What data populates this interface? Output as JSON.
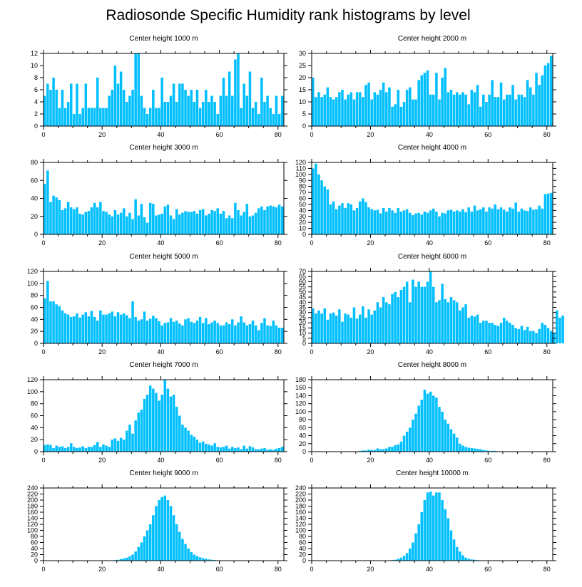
{
  "title": "Radiosonde Specific Humidity rank histograms by level",
  "colors": {
    "bar": "#00BFFF",
    "axis": "#000000"
  },
  "chart_data": [
    {
      "type": "bar",
      "title": "Center height 1000 m",
      "xlim": [
        0,
        82
      ],
      "ylim": [
        0,
        12
      ],
      "xticks": [
        0,
        20,
        40,
        60,
        80
      ],
      "yticks": [
        0,
        2,
        4,
        6,
        8,
        10,
        12
      ],
      "values": [
        5,
        7,
        6,
        8,
        6,
        3,
        6,
        3,
        4,
        7,
        2,
        7,
        2,
        3,
        7,
        3,
        3,
        3,
        8,
        3,
        3,
        3,
        5,
        6,
        10,
        7,
        9,
        6,
        4,
        5,
        6,
        12,
        12,
        5,
        3,
        2,
        3,
        6,
        3,
        3,
        8,
        4,
        4,
        5,
        7,
        4,
        7,
        7,
        6,
        5,
        6,
        4,
        6,
        3,
        4,
        6,
        4,
        5,
        4,
        2,
        5,
        8,
        5,
        9,
        5,
        11,
        12,
        3,
        7,
        5,
        9,
        3,
        4,
        2,
        8,
        4,
        5,
        3,
        2,
        5,
        2,
        5
      ]
    },
    {
      "type": "bar",
      "title": "Center height 2000 m",
      "xlim": [
        0,
        82
      ],
      "ylim": [
        0,
        30
      ],
      "xticks": [
        0,
        20,
        40,
        60,
        80
      ],
      "yticks": [
        0,
        5,
        10,
        15,
        20,
        25,
        30
      ],
      "values": [
        20,
        12,
        14,
        12,
        13,
        16,
        12,
        11,
        12,
        14,
        15,
        11,
        13,
        14,
        11,
        14,
        14,
        12,
        17,
        18,
        11,
        14,
        13,
        15,
        18,
        14,
        16,
        8,
        9,
        15,
        8,
        10,
        15,
        16,
        11,
        11,
        19,
        21,
        22,
        23,
        13,
        13,
        22,
        11,
        20,
        24,
        14,
        15,
        13,
        14,
        13,
        14,
        13,
        9,
        15,
        14,
        17,
        8,
        13,
        10,
        13,
        19,
        12,
        12,
        18,
        11,
        13,
        13,
        17,
        11,
        13,
        13,
        12,
        19,
        16,
        13,
        22,
        17,
        21,
        25,
        26,
        29
      ]
    },
    {
      "type": "bar",
      "title": "Center height 3000 m",
      "xlim": [
        0,
        82
      ],
      "ylim": [
        0,
        80
      ],
      "xticks": [
        0,
        20,
        40,
        60,
        80
      ],
      "yticks": [
        0,
        20,
        40,
        60,
        80
      ],
      "values": [
        56,
        71,
        36,
        43,
        41,
        38,
        27,
        29,
        36,
        30,
        28,
        30,
        23,
        22,
        25,
        26,
        30,
        35,
        30,
        36,
        26,
        25,
        22,
        20,
        27,
        22,
        24,
        29,
        20,
        24,
        17,
        39,
        21,
        34,
        19,
        13,
        35,
        34,
        21,
        22,
        23,
        31,
        33,
        21,
        17,
        28,
        22,
        24,
        26,
        25,
        25,
        26,
        23,
        27,
        28,
        21,
        23,
        27,
        26,
        29,
        23,
        26,
        18,
        21,
        18,
        35,
        27,
        21,
        25,
        34,
        20,
        21,
        24,
        29,
        31,
        27,
        31,
        32,
        31,
        30,
        33,
        31
      ]
    },
    {
      "type": "bar",
      "title": "Center height 4000 m",
      "xlim": [
        0,
        82
      ],
      "ylim": [
        0,
        120
      ],
      "xticks": [
        0,
        20,
        40,
        60,
        80
      ],
      "yticks": [
        0,
        10,
        20,
        30,
        40,
        50,
        60,
        70,
        80,
        90,
        100,
        110,
        120
      ],
      "values": [
        110,
        118,
        100,
        90,
        80,
        75,
        50,
        55,
        42,
        48,
        52,
        44,
        52,
        50,
        40,
        44,
        55,
        60,
        54,
        45,
        42,
        40,
        41,
        35,
        44,
        38,
        44,
        40,
        36,
        44,
        38,
        40,
        42,
        36,
        32,
        35,
        36,
        33,
        38,
        36,
        40,
        43,
        38,
        30,
        36,
        35,
        40,
        41,
        38,
        40,
        38,
        42,
        37,
        45,
        38,
        48,
        40,
        42,
        45,
        38,
        45,
        43,
        50,
        42,
        45,
        41,
        38,
        45,
        43,
        53,
        38,
        43,
        40,
        39,
        45,
        41,
        42,
        48,
        43,
        67,
        68,
        69
      ]
    },
    {
      "type": "bar",
      "title": "Center height 5000 m",
      "xlim": [
        0,
        82
      ],
      "ylim": [
        0,
        120
      ],
      "xticks": [
        0,
        20,
        40,
        60,
        80
      ],
      "yticks": [
        0,
        20,
        40,
        60,
        80,
        100,
        120
      ],
      "values": [
        75,
        104,
        70,
        70,
        65,
        62,
        55,
        50,
        48,
        44,
        45,
        50,
        43,
        48,
        52,
        45,
        54,
        44,
        38,
        55,
        48,
        48,
        50,
        53,
        45,
        52,
        48,
        50,
        47,
        42,
        70,
        44,
        38,
        40,
        53,
        38,
        41,
        46,
        42,
        37,
        30,
        34,
        35,
        42,
        36,
        38,
        33,
        30,
        40,
        42,
        36,
        34,
        38,
        44,
        34,
        42,
        32,
        35,
        38,
        34,
        30,
        30,
        35,
        32,
        40,
        30,
        35,
        45,
        35,
        30,
        32,
        38,
        30,
        22,
        34,
        42,
        30,
        29,
        38,
        30,
        26,
        26
      ]
    },
    {
      "type": "bar",
      "title": "Center height 6000 m",
      "xlim": [
        0,
        82
      ],
      "ylim": [
        0,
        70
      ],
      "xticks": [
        0,
        20,
        40,
        60,
        80
      ],
      "yticks": [
        0,
        5,
        10,
        15,
        20,
        25,
        30,
        35,
        40,
        45,
        50,
        55,
        60,
        65,
        70
      ],
      "values": [
        34,
        29,
        32,
        29,
        34,
        23,
        29,
        30,
        27,
        33,
        21,
        29,
        28,
        25,
        35,
        24,
        28,
        36,
        25,
        33,
        28,
        32,
        40,
        35,
        45,
        40,
        38,
        48,
        50,
        45,
        52,
        55,
        60,
        40,
        62,
        55,
        60,
        55,
        55,
        60,
        70,
        55,
        40,
        42,
        58,
        43,
        40,
        45,
        42,
        40,
        32,
        35,
        38,
        25,
        27,
        26,
        28,
        20,
        22,
        22,
        20,
        20,
        18,
        17,
        20,
        25,
        22,
        20,
        18,
        15,
        14,
        17,
        13,
        16,
        12,
        12,
        10,
        14,
        20,
        18,
        15,
        12,
        10,
        32,
        25,
        27
      ]
    },
    {
      "type": "bar",
      "title": "Center height 7000 m",
      "xlim": [
        0,
        82
      ],
      "ylim": [
        0,
        120
      ],
      "xticks": [
        0,
        20,
        40,
        60,
        80
      ],
      "yticks": [
        0,
        20,
        40,
        60,
        80,
        100,
        120
      ],
      "values": [
        11,
        12,
        11,
        6,
        10,
        8,
        9,
        6,
        8,
        14,
        8,
        6,
        7,
        9,
        6,
        8,
        8,
        11,
        16,
        8,
        12,
        10,
        8,
        20,
        22,
        18,
        23,
        20,
        35,
        45,
        30,
        52,
        65,
        70,
        88,
        95,
        110,
        105,
        98,
        85,
        95,
        120,
        105,
        92,
        95,
        75,
        60,
        45,
        40,
        35,
        28,
        25,
        20,
        15,
        17,
        13,
        12,
        10,
        14,
        8,
        7,
        8,
        10,
        5,
        8,
        6,
        7,
        4,
        10,
        5,
        9,
        7,
        4,
        4,
        5,
        6,
        3,
        4,
        3,
        5,
        6,
        8
      ]
    },
    {
      "type": "bar",
      "title": "Center height 8000 m",
      "xlim": [
        0,
        82
      ],
      "ylim": [
        0,
        180
      ],
      "xticks": [
        0,
        20,
        40,
        60,
        80
      ],
      "yticks": [
        0,
        20,
        40,
        60,
        80,
        100,
        120,
        140,
        160,
        180
      ],
      "values": [
        0,
        0,
        0,
        0,
        0,
        0,
        0,
        0,
        0,
        0,
        0,
        0,
        0,
        0,
        0,
        0,
        2,
        3,
        3,
        5,
        4,
        4,
        8,
        6,
        6,
        8,
        12,
        12,
        16,
        18,
        25,
        40,
        50,
        60,
        80,
        95,
        115,
        130,
        155,
        145,
        150,
        140,
        135,
        112,
        100,
        80,
        70,
        56,
        45,
        35,
        20,
        15,
        12,
        10,
        9,
        8,
        7,
        6,
        4,
        3,
        2,
        2,
        2,
        1,
        1,
        1,
        1,
        0,
        0,
        0,
        0,
        0,
        0,
        0,
        0,
        0,
        0,
        0,
        0,
        0,
        0,
        0
      ]
    },
    {
      "type": "bar",
      "title": "Center height 9000 m",
      "xlim": [
        0,
        82
      ],
      "ylim": [
        0,
        240
      ],
      "xticks": [
        0,
        20,
        40,
        60,
        80
      ],
      "yticks": [
        0,
        20,
        40,
        60,
        80,
        100,
        120,
        140,
        160,
        180,
        200,
        220,
        240
      ],
      "values": [
        0,
        0,
        0,
        0,
        0,
        0,
        0,
        0,
        0,
        0,
        0,
        0,
        0,
        0,
        0,
        0,
        0,
        0,
        0,
        0,
        0,
        0,
        0,
        0,
        2,
        3,
        5,
        7,
        10,
        14,
        20,
        30,
        45,
        60,
        80,
        100,
        120,
        150,
        180,
        200,
        210,
        215,
        200,
        180,
        150,
        120,
        95,
        72,
        55,
        40,
        28,
        20,
        15,
        11,
        8,
        6,
        4,
        3,
        2,
        1,
        1,
        0,
        0,
        0,
        0,
        0,
        0,
        0,
        0,
        0,
        0,
        0,
        0,
        0,
        0,
        0,
        0,
        0,
        0,
        0,
        0,
        0
      ]
    },
    {
      "type": "bar",
      "title": "Center height 10000 m",
      "xlim": [
        0,
        82
      ],
      "ylim": [
        0,
        240
      ],
      "xticks": [
        0,
        20,
        40,
        60,
        80
      ],
      "yticks": [
        0,
        20,
        40,
        60,
        80,
        100,
        120,
        140,
        160,
        180,
        200,
        220,
        240
      ],
      "values": [
        0,
        0,
        0,
        0,
        0,
        0,
        0,
        0,
        0,
        0,
        0,
        0,
        0,
        0,
        0,
        0,
        0,
        0,
        0,
        0,
        0,
        0,
        0,
        0,
        0,
        0,
        0,
        2,
        3,
        6,
        10,
        16,
        25,
        40,
        60,
        90,
        120,
        160,
        200,
        225,
        228,
        215,
        225,
        225,
        200,
        170,
        140,
        100,
        70,
        45,
        30,
        18,
        10,
        6,
        4,
        3,
        2,
        1,
        1,
        0,
        0,
        0,
        0,
        0,
        0,
        0,
        0,
        0,
        0,
        0,
        0,
        0,
        0,
        0,
        0,
        0,
        0,
        0,
        0,
        0,
        0,
        0
      ]
    }
  ]
}
